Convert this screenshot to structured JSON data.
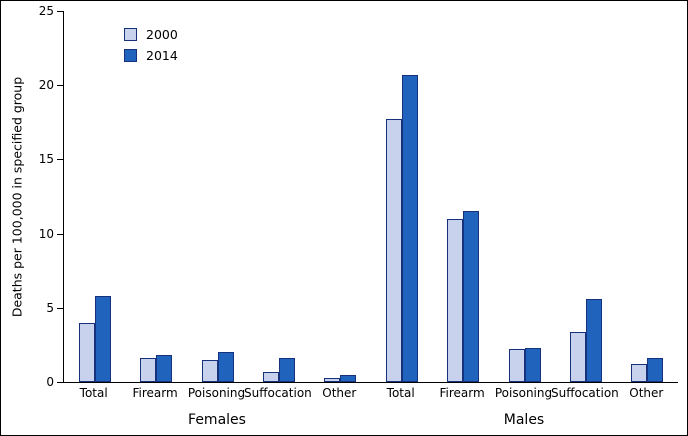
{
  "chart_data": {
    "type": "bar",
    "ylabel": "Deaths per 100,000 in specified group",
    "xlabel": "",
    "ylim": [
      0,
      25
    ],
    "yticks": [
      0,
      5,
      10,
      15,
      20,
      25
    ],
    "grid": false,
    "legend": {
      "position": "top-left",
      "entries": [
        {
          "label": "2000",
          "color": "#c9d2ec"
        },
        {
          "label": "2014",
          "color": "#1f63bd"
        }
      ]
    },
    "groups": [
      {
        "label": "Females",
        "categories": [
          "Total",
          "Firearm",
          "Poisoning",
          "Suffocation",
          "Other"
        ],
        "series": [
          {
            "name": "2000",
            "values": [
              4.0,
              1.6,
              1.5,
              0.7,
              0.3
            ]
          },
          {
            "name": "2014",
            "values": [
              5.8,
              1.8,
              2.0,
              1.6,
              0.5
            ]
          }
        ]
      },
      {
        "label": "Males",
        "categories": [
          "Total",
          "Firearm",
          "Poisoning",
          "Suffocation",
          "Other"
        ],
        "series": [
          {
            "name": "2000",
            "values": [
              17.7,
              11.0,
              2.2,
              3.4,
              1.2
            ]
          },
          {
            "name": "2014",
            "values": [
              20.7,
              11.5,
              2.3,
              5.6,
              1.6
            ]
          }
        ]
      }
    ],
    "colors": {
      "series_2000_fill": "#c9d2ec",
      "series_2014_fill": "#1f63bd",
      "bar_border": "#16327c",
      "axis": "#000000"
    }
  }
}
